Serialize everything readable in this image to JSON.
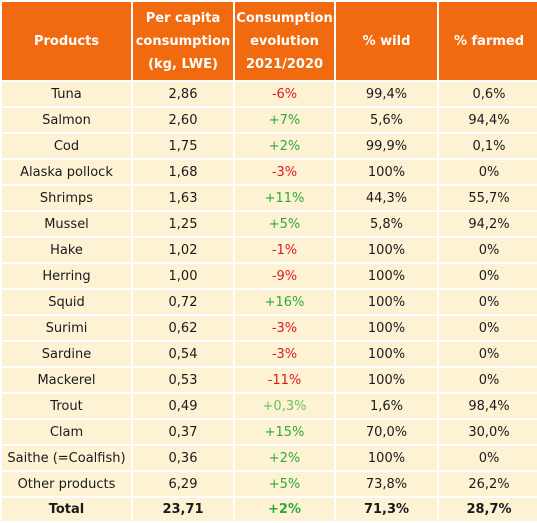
{
  "header": {
    "products": "Products",
    "per_capita": [
      "Per capita",
      "consumption",
      "(kg, LWE)"
    ],
    "evolution": [
      "Consumption",
      "evolution",
      "2021/2020"
    ],
    "wild": "% wild",
    "farmed": "% farmed"
  },
  "rows": [
    {
      "product": "Tuna",
      "consumption": "2,86",
      "evolution": "-6%",
      "wild": "99,4%",
      "farmed": "0,6%"
    },
    {
      "product": "Salmon",
      "consumption": "2,60",
      "evolution": "+7%",
      "wild": "5,6%",
      "farmed": "94,4%"
    },
    {
      "product": "Cod",
      "consumption": "1,75",
      "evolution": "+2%",
      "wild": "99,9%",
      "farmed": "0,1%"
    },
    {
      "product": "Alaska pollock",
      "consumption": "1,68",
      "evolution": "-3%",
      "wild": "100%",
      "farmed": "0%"
    },
    {
      "product": "Shrimps",
      "consumption": "1,63",
      "evolution": "+11%",
      "wild": "44,3%",
      "farmed": "55,7%"
    },
    {
      "product": "Mussel",
      "consumption": "1,25",
      "evolution": "+5%",
      "wild": "5,8%",
      "farmed": "94,2%"
    },
    {
      "product": "Hake",
      "consumption": "1,02",
      "evolution": "-1%",
      "wild": "100%",
      "farmed": "0%"
    },
    {
      "product": "Herring",
      "consumption": "1,00",
      "evolution": "-9%",
      "wild": "100%",
      "farmed": "0%"
    },
    {
      "product": "Squid",
      "consumption": "0,72",
      "evolution": "+16%",
      "wild": "100%",
      "farmed": "0%"
    },
    {
      "product": "Surimi",
      "consumption": "0,62",
      "evolution": "-3%",
      "wild": "100%",
      "farmed": "0%"
    },
    {
      "product": "Sardine",
      "consumption": "0,54",
      "evolution": "-3%",
      "wild": "100%",
      "farmed": "0%"
    },
    {
      "product": "Mackerel",
      "consumption": "0,53",
      "evolution": "-11%",
      "wild": "100%",
      "farmed": "0%"
    },
    {
      "product": "Trout",
      "consumption": "0,49",
      "evolution": "+0,3%",
      "wild": "1,6%",
      "farmed": "98,4%"
    },
    {
      "product": "Clam",
      "consumption": "0,37",
      "evolution": "+15%",
      "wild": "70,0%",
      "farmed": "30,0%"
    },
    {
      "product": "Saithe (=Coalfish)",
      "consumption": "0,36",
      "evolution": "+2%",
      "wild": "100%",
      "farmed": "0%"
    },
    {
      "product": "Other products",
      "consumption": "6,29",
      "evolution": "+5%",
      "wild": "73,8%",
      "farmed": "26,2%"
    }
  ],
  "total": {
    "product": "Total",
    "consumption": "23,71",
    "evolution": "+2%",
    "wild": "71,3%",
    "farmed": "28,7%"
  },
  "colors": {
    "header_bg": "#f26a0f",
    "cell_bg": "#fdf3d4",
    "negative": "#e0191e",
    "positive": "#2eaa3a",
    "positive_light": "#6cbf5a"
  }
}
